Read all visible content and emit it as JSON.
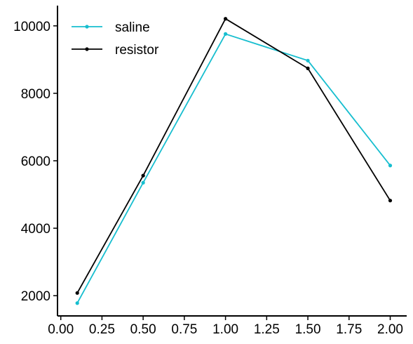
{
  "chart_data": {
    "type": "line",
    "title": "",
    "xlabel": "",
    "ylabel": "",
    "xlim": [
      -0.02,
      2.1
    ],
    "ylim": [
      1400,
      10600
    ],
    "x_ticks": [
      0.0,
      0.25,
      0.5,
      0.75,
      1.0,
      1.25,
      1.5,
      1.75,
      2.0
    ],
    "x_tick_labels": [
      "0.00",
      "0.25",
      "0.50",
      "0.75",
      "1.00",
      "1.25",
      "1.50",
      "1.75",
      "2.00"
    ],
    "y_ticks": [
      2000,
      4000,
      6000,
      8000,
      10000
    ],
    "y_tick_labels": [
      "2000",
      "4000",
      "6000",
      "8000",
      "10000"
    ],
    "grid": false,
    "legend_position": "top-left",
    "series": [
      {
        "name": "saline",
        "color": "#17becf",
        "x": [
          0.1,
          0.5,
          1.0,
          1.5,
          2.0
        ],
        "y": [
          1780,
          5350,
          9760,
          8970,
          5860
        ]
      },
      {
        "name": "resistor",
        "color": "#000000",
        "x": [
          0.1,
          0.5,
          1.0,
          1.5,
          2.0
        ],
        "y": [
          2080,
          5560,
          10210,
          8740,
          4820
        ]
      }
    ]
  }
}
